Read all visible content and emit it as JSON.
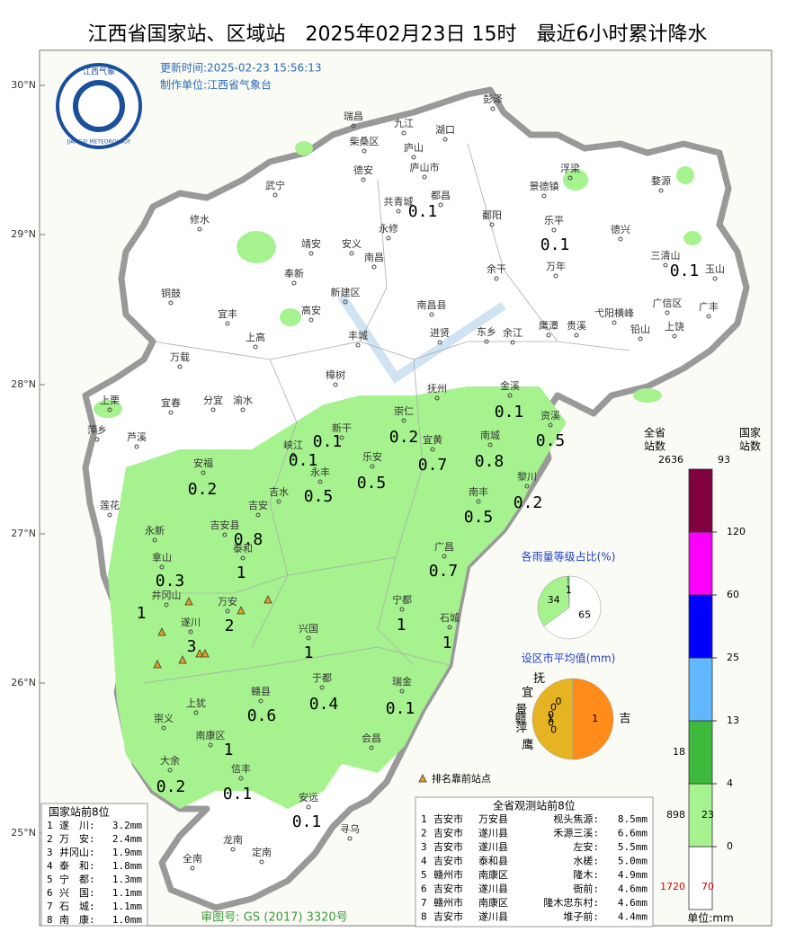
{
  "header": {
    "title": "江西省国家站、区域站　2025年02月23日 15时　最近6小时累计降水"
  },
  "info": {
    "update": "更新时间:2025-02-23 15:56:13",
    "producer": "制作单位:江西省气象台",
    "audit": "审图号: GS (2017) 3320号",
    "rank_note": "排名靠前站点"
  },
  "logo": {
    "cn": "江西气象",
    "en": "JIANGXI METEOROLOGY"
  },
  "lat_labels": [
    "30°N",
    "29°N",
    "28°N",
    "27°N",
    "26°N",
    "25°N"
  ],
  "places": [
    "彭泽",
    "瑞昌",
    "九江",
    "湖口",
    "柴桑区",
    "庐山",
    "德安",
    "庐山市",
    "浮梁",
    "武宁",
    "景德镇",
    "婺源",
    "共青城",
    "都昌",
    "修水",
    "鄱阳",
    "乐平",
    "永修",
    "德兴",
    "靖安",
    "安义",
    "三清山",
    "玉山",
    "奉新",
    "南昌",
    "余干",
    "万年",
    "铜鼓",
    "新建区",
    "广信区",
    "广丰",
    "宜丰",
    "高安",
    "南昌县",
    "弋阳横峰",
    "上饶",
    "鹰潭",
    "贵溪",
    "上高",
    "丰城",
    "进贤",
    "东乡",
    "余江",
    "铅山",
    "万载",
    "樟树",
    "金溪",
    "抚州",
    "上栗",
    "宜春",
    "分宜",
    "渝水",
    "萍乡",
    "芦溪",
    "崇仁",
    "新干",
    "资溪",
    "宜黄",
    "南城",
    "峡江",
    "安福",
    "乐安",
    "永丰",
    "黎川",
    "吉水",
    "南丰",
    "吉安",
    "莲花",
    "吉安县",
    "永新",
    "广昌",
    "泰和",
    "拿山",
    "井冈山",
    "宁都",
    "万安",
    "石城",
    "遂川",
    "兴国",
    "于都",
    "瑞金",
    "赣县",
    "上犹",
    "崇义",
    "会昌",
    "南康区",
    "大余",
    "信丰",
    "安远",
    "寻乌",
    "龙南",
    "全南",
    "定南"
  ],
  "map_values": [
    0.1,
    0.1,
    0.1,
    0.1,
    0.2,
    0.5,
    0.1,
    0.1,
    0.7,
    0.8,
    0.2,
    0.5,
    0.5,
    0.2,
    0.5,
    0.8,
    1,
    0.7,
    0.3,
    1,
    2,
    1,
    3,
    1,
    1,
    0.6,
    0.4,
    0.1,
    1,
    0.2,
    0.1,
    0.1
  ],
  "legend": {
    "head_province": "全省\n站数",
    "head_national": "国家\n站数",
    "total_province": 2636,
    "total_national": 93,
    "levels": [
      0,
      4,
      13,
      25,
      60,
      120
    ],
    "colors": [
      "#ffffff",
      "#a6f28f",
      "#3dba3d",
      "#61b8ff",
      "#0000fe",
      "#fa00fa",
      "#800040"
    ],
    "province_counts": [
      1720,
      898,
      18
    ],
    "national_counts": [
      70,
      23
    ],
    "unit": "单位:mm"
  },
  "pie_levels": {
    "title": "各雨量等级占比(%)",
    "values": [
      65,
      34,
      1
    ],
    "colors": [
      "#ffffff",
      "#a6f28f",
      "#3dba3d"
    ]
  },
  "pie_cities": {
    "title": "设区市平均值(mm)",
    "categories": [
      "吉",
      "赣",
      "抚",
      "宜",
      "景",
      "萍",
      "鹰"
    ],
    "values": [
      1,
      1,
      0,
      0,
      0,
      0,
      0
    ],
    "colors": [
      "#ff8c1a",
      "#e6b422",
      "#ffff33",
      "#3dba3d",
      "#3a7bd5",
      "#a0a0ff",
      "#66cc99"
    ]
  },
  "national_top": {
    "title": "国家站前8位",
    "rows": [
      [
        "1",
        "遂　川:",
        "3.2mm"
      ],
      [
        "2",
        "万　安:",
        "2.4mm"
      ],
      [
        "3",
        "井冈山:",
        "1.9mm"
      ],
      [
        "4",
        "泰　和:",
        "1.8mm"
      ],
      [
        "5",
        "宁　都:",
        "1.3mm"
      ],
      [
        "6",
        "兴　国:",
        "1.1mm"
      ],
      [
        "7",
        "石　城:",
        "1.1mm"
      ],
      [
        "8",
        "南　康:",
        "1.0mm"
      ]
    ]
  },
  "province_top": {
    "title": "全省观测站前8位",
    "rows": [
      [
        "1",
        "吉安市",
        "万安县",
        "枧头焦源:",
        "8.5mm"
      ],
      [
        "2",
        "吉安市",
        "遂川县",
        "禾源三溪:",
        "6.6mm"
      ],
      [
        "3",
        "吉安市",
        "遂川县",
        "左安:",
        "5.5mm"
      ],
      [
        "4",
        "吉安市",
        "泰和县",
        "水槎:",
        "5.0mm"
      ],
      [
        "5",
        "赣州市",
        "南康区",
        "隆木:",
        "4.9mm"
      ],
      [
        "6",
        "吉安市",
        "遂川县",
        "衙前:",
        "4.6mm"
      ],
      [
        "7",
        "赣州市",
        "南康区",
        "隆木忠东村:",
        "4.6mm"
      ],
      [
        "8",
        "吉安市",
        "遂川县",
        "堆子前:",
        "4.4mm"
      ]
    ]
  }
}
